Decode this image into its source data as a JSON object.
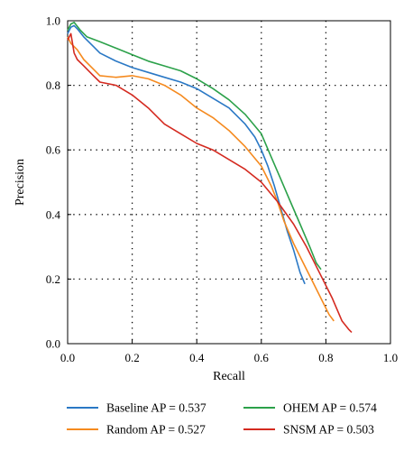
{
  "chart_data": {
    "type": "line",
    "xlabel": "Recall",
    "ylabel": "Precision",
    "xlim": [
      0.0,
      1.0
    ],
    "ylim": [
      0.0,
      1.0
    ],
    "x_ticks": [
      "0.0",
      "0.2",
      "0.4",
      "0.6",
      "0.8",
      "1.0"
    ],
    "y_ticks": [
      "0.0",
      "0.2",
      "0.4",
      "0.6",
      "0.8",
      "1.0"
    ],
    "grid": "dotted",
    "legend_position": "below",
    "series": [
      {
        "name": "Baseline AP = 0.537",
        "color": "#2a78c5",
        "points": [
          [
            0.0,
            0.96
          ],
          [
            0.01,
            0.98
          ],
          [
            0.02,
            0.985
          ],
          [
            0.03,
            0.975
          ],
          [
            0.05,
            0.95
          ],
          [
            0.08,
            0.92
          ],
          [
            0.1,
            0.9
          ],
          [
            0.15,
            0.875
          ],
          [
            0.2,
            0.855
          ],
          [
            0.25,
            0.84
          ],
          [
            0.3,
            0.825
          ],
          [
            0.35,
            0.81
          ],
          [
            0.4,
            0.79
          ],
          [
            0.45,
            0.76
          ],
          [
            0.5,
            0.73
          ],
          [
            0.55,
            0.68
          ],
          [
            0.58,
            0.64
          ],
          [
            0.6,
            0.6
          ],
          [
            0.62,
            0.55
          ],
          [
            0.64,
            0.49
          ],
          [
            0.66,
            0.42
          ],
          [
            0.68,
            0.35
          ],
          [
            0.7,
            0.29
          ],
          [
            0.72,
            0.22
          ],
          [
            0.735,
            0.185
          ]
        ]
      },
      {
        "name": "Random AP = 0.527",
        "color": "#f58a1f",
        "points": [
          [
            0.0,
            0.95
          ],
          [
            0.01,
            0.93
          ],
          [
            0.03,
            0.91
          ],
          [
            0.05,
            0.88
          ],
          [
            0.08,
            0.85
          ],
          [
            0.1,
            0.83
          ],
          [
            0.15,
            0.825
          ],
          [
            0.2,
            0.83
          ],
          [
            0.25,
            0.82
          ],
          [
            0.3,
            0.8
          ],
          [
            0.35,
            0.77
          ],
          [
            0.4,
            0.73
          ],
          [
            0.45,
            0.7
          ],
          [
            0.5,
            0.66
          ],
          [
            0.55,
            0.61
          ],
          [
            0.6,
            0.55
          ],
          [
            0.63,
            0.49
          ],
          [
            0.65,
            0.44
          ],
          [
            0.67,
            0.38
          ],
          [
            0.7,
            0.31
          ],
          [
            0.73,
            0.25
          ],
          [
            0.76,
            0.19
          ],
          [
            0.79,
            0.13
          ],
          [
            0.81,
            0.09
          ],
          [
            0.825,
            0.07
          ]
        ]
      },
      {
        "name": "OHEM AP = 0.574",
        "color": "#2ca14a",
        "points": [
          [
            0.0,
            0.97
          ],
          [
            0.01,
            0.99
          ],
          [
            0.02,
            0.995
          ],
          [
            0.04,
            0.97
          ],
          [
            0.06,
            0.95
          ],
          [
            0.1,
            0.935
          ],
          [
            0.15,
            0.915
          ],
          [
            0.2,
            0.895
          ],
          [
            0.25,
            0.875
          ],
          [
            0.3,
            0.86
          ],
          [
            0.35,
            0.845
          ],
          [
            0.4,
            0.82
          ],
          [
            0.45,
            0.79
          ],
          [
            0.5,
            0.755
          ],
          [
            0.55,
            0.71
          ],
          [
            0.6,
            0.65
          ],
          [
            0.63,
            0.58
          ],
          [
            0.66,
            0.51
          ],
          [
            0.69,
            0.44
          ],
          [
            0.72,
            0.37
          ],
          [
            0.75,
            0.3
          ],
          [
            0.77,
            0.25
          ],
          [
            0.785,
            0.23
          ]
        ]
      },
      {
        "name": "SNSM AP = 0.503",
        "color": "#d42a20",
        "points": [
          [
            0.0,
            0.94
          ],
          [
            0.01,
            0.96
          ],
          [
            0.02,
            0.9
          ],
          [
            0.03,
            0.88
          ],
          [
            0.05,
            0.86
          ],
          [
            0.08,
            0.83
          ],
          [
            0.1,
            0.81
          ],
          [
            0.15,
            0.8
          ],
          [
            0.2,
            0.77
          ],
          [
            0.25,
            0.73
          ],
          [
            0.3,
            0.68
          ],
          [
            0.35,
            0.65
          ],
          [
            0.4,
            0.62
          ],
          [
            0.45,
            0.6
          ],
          [
            0.5,
            0.57
          ],
          [
            0.55,
            0.54
          ],
          [
            0.6,
            0.5
          ],
          [
            0.65,
            0.44
          ],
          [
            0.7,
            0.37
          ],
          [
            0.74,
            0.3
          ],
          [
            0.78,
            0.22
          ],
          [
            0.82,
            0.14
          ],
          [
            0.85,
            0.07
          ],
          [
            0.87,
            0.045
          ],
          [
            0.88,
            0.035
          ]
        ]
      }
    ]
  }
}
